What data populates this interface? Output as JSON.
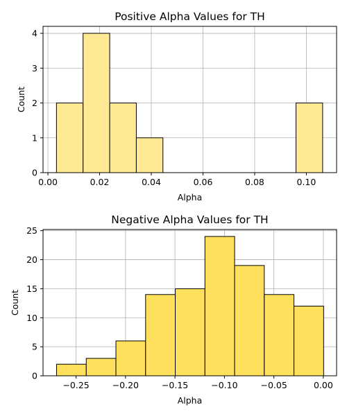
{
  "colors": {
    "pos_bar": "#FFE994",
    "neg_bar": "#FFE05C",
    "bar_edge": "#000000",
    "grid": "#b0b0b0",
    "axes": "#000000",
    "background": "#ffffff"
  },
  "chart_data": [
    {
      "type": "bar",
      "subtype": "histogram",
      "title": "Positive Alpha Values for TH",
      "xlabel": "Alpha",
      "ylabel": "Count",
      "xlim": [
        -0.0019,
        0.1117
      ],
      "ylim": [
        0,
        4.2
      ],
      "grid": true,
      "xticks": [
        0.0,
        0.02,
        0.04,
        0.06,
        0.08,
        0.1
      ],
      "xtick_labels": [
        "0.00",
        "0.02",
        "0.04",
        "0.06",
        "0.08",
        "0.10"
      ],
      "yticks": [
        0,
        1,
        2,
        3,
        4
      ],
      "ytick_labels": [
        "0",
        "1",
        "2",
        "3",
        "4"
      ],
      "bins": [
        {
          "start": 0.0033,
          "end": 0.0136,
          "count": 2
        },
        {
          "start": 0.0136,
          "end": 0.0239,
          "count": 4
        },
        {
          "start": 0.0239,
          "end": 0.0342,
          "count": 2
        },
        {
          "start": 0.0342,
          "end": 0.0445,
          "count": 1
        },
        {
          "start": 0.0445,
          "end": 0.0548,
          "count": 0
        },
        {
          "start": 0.0548,
          "end": 0.0651,
          "count": 0
        },
        {
          "start": 0.0651,
          "end": 0.0754,
          "count": 0
        },
        {
          "start": 0.0754,
          "end": 0.0857,
          "count": 0
        },
        {
          "start": 0.0857,
          "end": 0.096,
          "count": 0
        },
        {
          "start": 0.096,
          "end": 0.1063,
          "count": 2
        }
      ]
    },
    {
      "type": "bar",
      "subtype": "histogram",
      "title": "Negative Alpha Values for TH",
      "xlabel": "Alpha",
      "ylabel": "Count",
      "xlim": [
        -0.2834,
        0.0134
      ],
      "ylim": [
        0,
        25.2
      ],
      "grid": true,
      "xticks": [
        -0.25,
        -0.2,
        -0.15,
        -0.1,
        -0.05,
        0.0
      ],
      "xtick_labels": [
        "−0.25",
        "−0.20",
        "−0.15",
        "−0.10",
        "−0.05",
        "0.00"
      ],
      "yticks": [
        0,
        5,
        10,
        15,
        20,
        25
      ],
      "ytick_labels": [
        "0",
        "5",
        "10",
        "15",
        "20",
        "25"
      ],
      "bins": [
        {
          "start": -0.2697,
          "end": -0.2397,
          "count": 2
        },
        {
          "start": -0.2397,
          "end": -0.2097,
          "count": 3
        },
        {
          "start": -0.2097,
          "end": -0.1797,
          "count": 6
        },
        {
          "start": -0.1797,
          "end": -0.1497,
          "count": 14
        },
        {
          "start": -0.1497,
          "end": -0.1197,
          "count": 15
        },
        {
          "start": -0.1197,
          "end": -0.0897,
          "count": 24
        },
        {
          "start": -0.0897,
          "end": -0.0597,
          "count": 19
        },
        {
          "start": -0.0597,
          "end": -0.0297,
          "count": 14
        },
        {
          "start": -0.0297,
          "end": 0.0003,
          "count": 12
        }
      ]
    }
  ]
}
